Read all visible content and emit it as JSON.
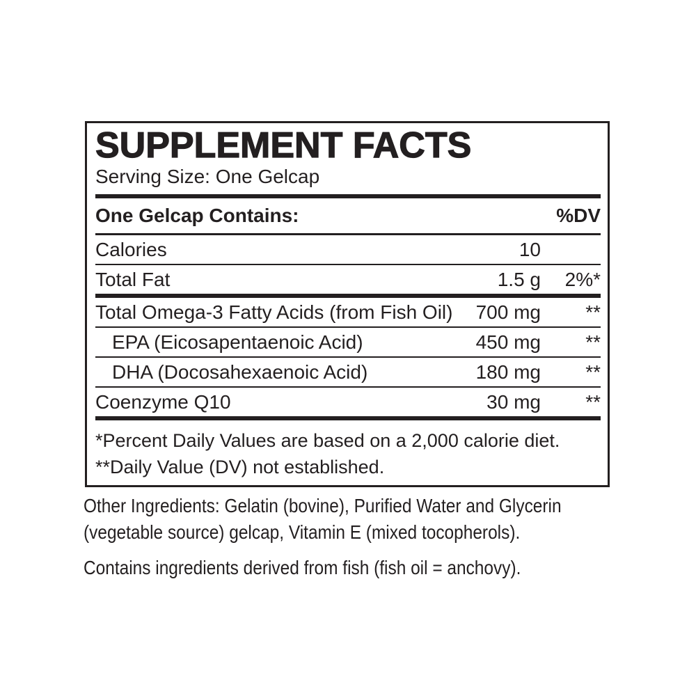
{
  "panel": {
    "title": "SUPPLEMENT FACTS",
    "serving_size": "Serving Size: One Gelcap",
    "contains_label": "One Gelcap Contains:",
    "dv_label": "%DV",
    "rows": [
      {
        "name": "Calories",
        "amount": "10",
        "dv": ""
      },
      {
        "name": "Total Fat",
        "amount": "1.5 g",
        "dv": "2%*"
      },
      {
        "name": "Total Omega-3 Fatty Acids (from Fish Oil)",
        "amount": "700 mg",
        "dv": "**"
      },
      {
        "name": "EPA (Eicosapentaenoic Acid)",
        "amount": "450 mg",
        "dv": "**"
      },
      {
        "name": "DHA (Docosahexaenoic Acid)",
        "amount": "180 mg",
        "dv": "**"
      },
      {
        "name": "Coenzyme Q10",
        "amount": "30 mg",
        "dv": "**"
      }
    ],
    "footnote_1": "*Percent Daily Values are based on a 2,000 calorie diet.",
    "footnote_2": "**Daily Value (DV) not established."
  },
  "other_ingredients": "Other Ingredients: Gelatin (bovine), Purified Water and Glycerin (vegetable source) gelcap, Vitamin E (mixed tocopherols).",
  "fish_statement": "Contains ingredients derived from fish (fish oil = anchovy).",
  "colors": {
    "text": "#231f20",
    "background": "#ffffff"
  }
}
